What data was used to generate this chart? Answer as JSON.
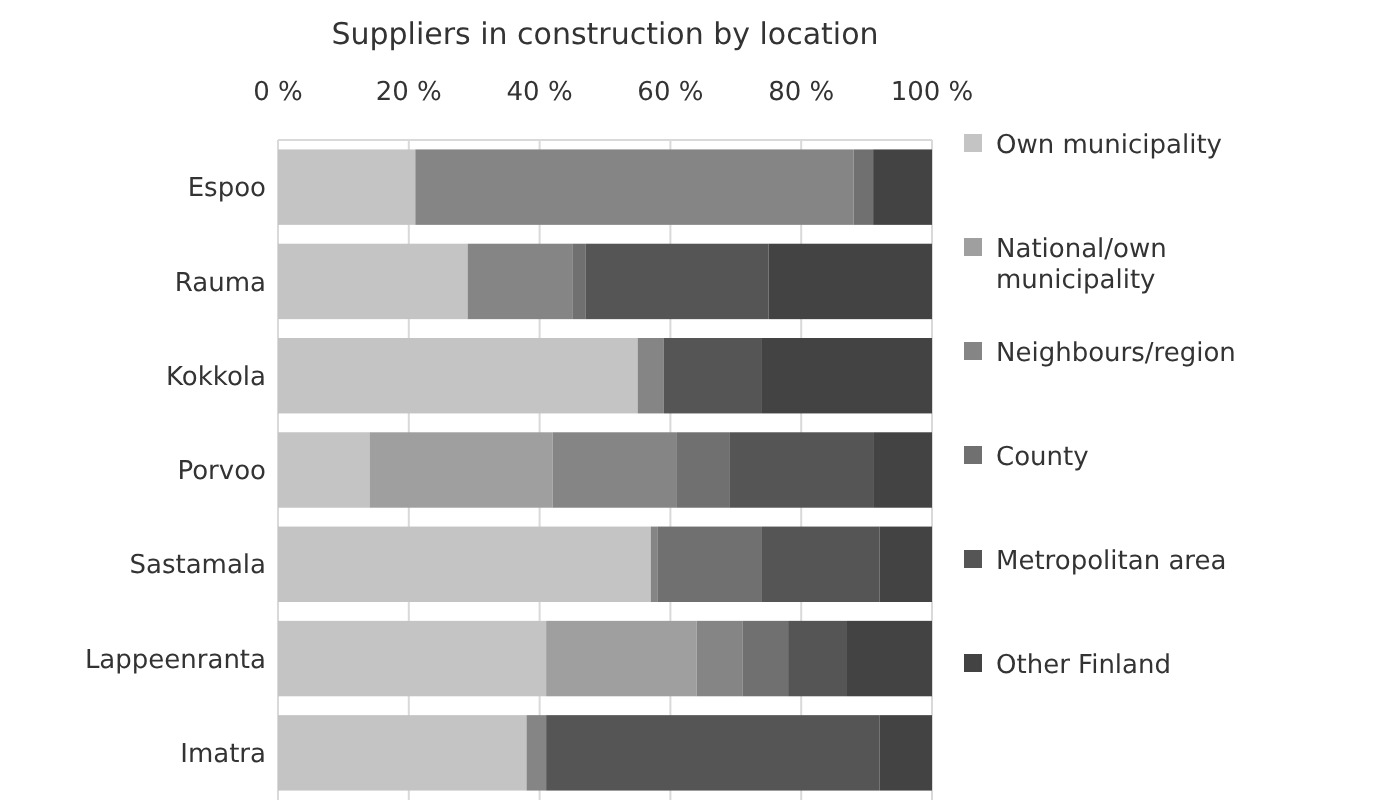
{
  "chart_data": {
    "type": "bar",
    "orientation": "horizontal",
    "stacked": true,
    "title": "Suppliers in construction by location",
    "categories": [
      "Espoo",
      "Rauma",
      "Kokkola",
      "Porvoo",
      "Sastamala",
      "Lappeenranta",
      "Imatra"
    ],
    "series": [
      {
        "name": "Own municipality",
        "color": "#c4c4c4",
        "values": [
          21,
          29,
          55,
          14,
          57,
          41,
          38
        ]
      },
      {
        "name": "National/own municipality",
        "color": "#9f9f9f",
        "values": [
          0,
          0,
          0,
          28,
          0,
          23,
          0
        ]
      },
      {
        "name": "Neighbours/region",
        "color": "#858585",
        "values": [
          67,
          16,
          4,
          19,
          1,
          7,
          3
        ]
      },
      {
        "name": "County",
        "color": "#707070",
        "values": [
          3,
          2,
          0,
          8,
          16,
          7,
          0
        ]
      },
      {
        "name": "Metropolitan area",
        "color": "#555555",
        "values": [
          0,
          28,
          15,
          22,
          18,
          9,
          51
        ]
      },
      {
        "name": "Other Finland",
        "color": "#434343",
        "values": [
          9,
          25,
          26,
          9,
          8,
          13,
          8
        ]
      }
    ],
    "xlim": [
      0,
      100
    ],
    "xticks": [
      {
        "value": 0,
        "label": "0 %"
      },
      {
        "value": 20,
        "label": "20 %"
      },
      {
        "value": 40,
        "label": "40 %"
      },
      {
        "value": 60,
        "label": "60 %"
      },
      {
        "value": 80,
        "label": "80 %"
      },
      {
        "value": 100,
        "label": "100 %"
      }
    ],
    "grid": "x",
    "legend": "right"
  }
}
